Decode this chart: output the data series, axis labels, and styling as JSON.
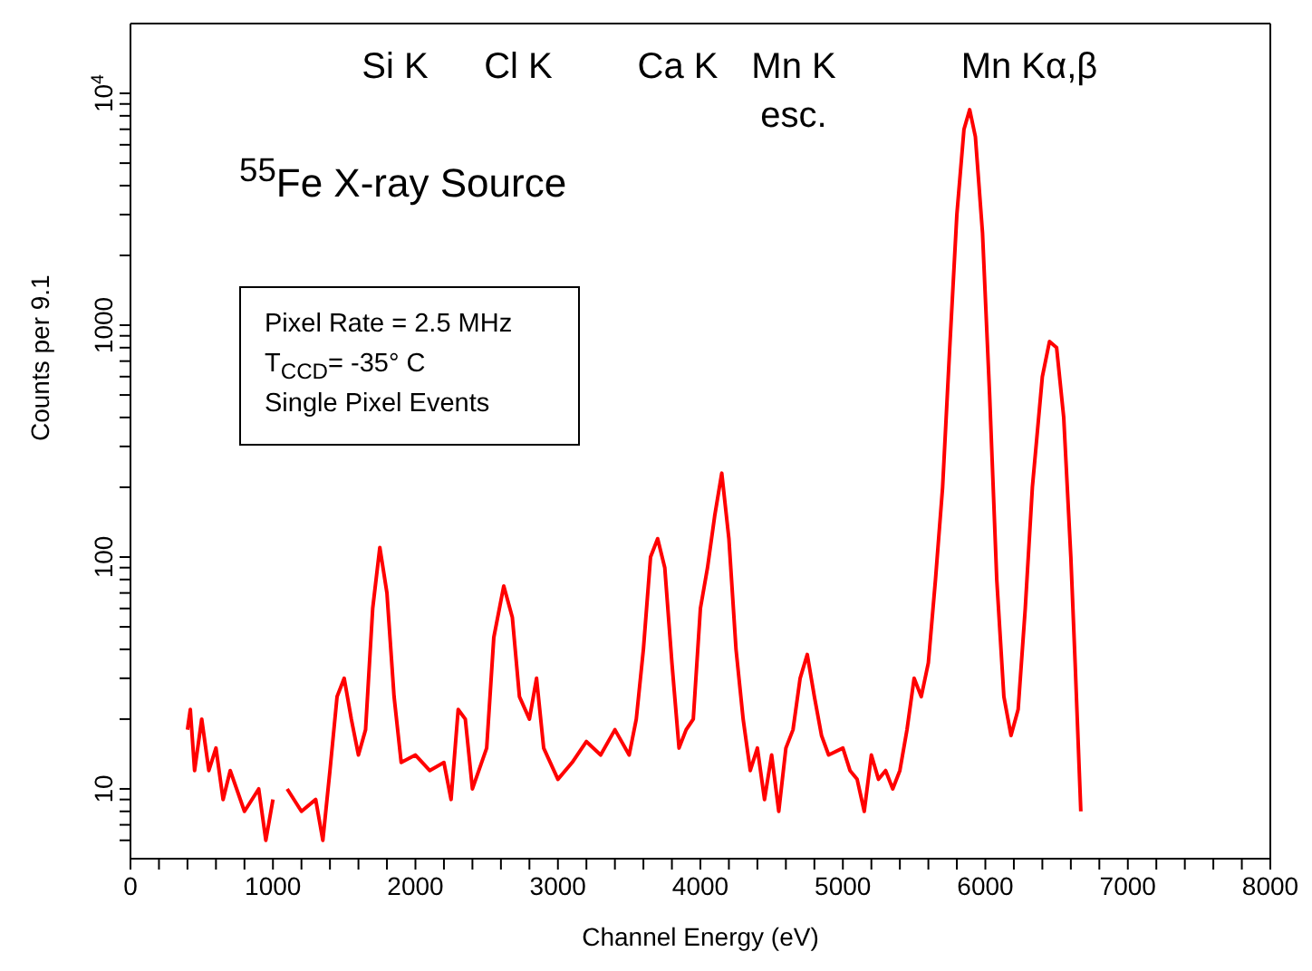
{
  "chart_data": {
    "type": "line",
    "xlabel": "Channel Energy (eV)",
    "ylabel": "Counts per 9.1",
    "log": "y",
    "marker": "none",
    "line_style": "solid",
    "annotations": [
      "Si K",
      "Cl K",
      "Ca K",
      "Mn K\nesc.",
      "Mn Kα,β",
      "$^{55}$Fe X-ray Source",
      "Pixel Rate = 2.5 MHz",
      "T$_{CCD}$= -35° C",
      "Single Pixel Events"
    ],
    "xlim": [
      0,
      8000
    ],
    "xticks": [
      0,
      {
        "value": 200,
        "label": null
      },
      {
        "value": 400,
        "label": null
      },
      {
        "value": 600,
        "label": null
      },
      {
        "value": 800,
        "label": null
      },
      1000,
      {
        "value": 1200,
        "label": null
      },
      {
        "value": 1400,
        "label": null
      },
      {
        "value": 1600,
        "label": null
      },
      {
        "value": 1800,
        "label": null
      },
      2000,
      {
        "value": 2200,
        "label": null
      },
      {
        "value": 2400,
        "label": null
      },
      {
        "value": 2600,
        "label": null
      },
      {
        "value": 2800,
        "label": null
      },
      3000,
      {
        "value": 3200,
        "label": null
      },
      {
        "value": 3400,
        "label": null
      },
      {
        "value": 3600,
        "label": null
      },
      {
        "value": 3800,
        "label": null
      },
      4000,
      {
        "value": 4200,
        "label": null
      },
      {
        "value": 4400,
        "label": null
      },
      {
        "value": 4600,
        "label": null
      },
      {
        "value": 4800,
        "label": null
      },
      5000,
      {
        "value": 5200,
        "label": null
      },
      {
        "value": 5400,
        "label": null
      },
      {
        "value": 5600,
        "label": null
      },
      {
        "value": 5800,
        "label": null
      },
      6000,
      {
        "value": 6200,
        "label": null
      },
      {
        "value": 6400,
        "label": null
      },
      {
        "value": 6600,
        "label": null
      },
      {
        "value": 6800,
        "label": null
      },
      7000,
      {
        "value": 7200,
        "label": null
      },
      {
        "value": 7400,
        "label": null
      },
      {
        "value": 7600,
        "label": null
      },
      {
        "value": 7800,
        "label": null
      },
      8000
    ],
    "ylim": [
      5,
      20000
    ],
    "yticks": [
      {
        "value": 6,
        "label": null
      },
      {
        "value": 7,
        "label": null
      },
      {
        "value": 8,
        "label": null
      },
      {
        "value": 9,
        "label": null
      },
      10,
      {
        "value": 20,
        "label": null
      },
      {
        "value": 30,
        "label": null
      },
      {
        "value": 40,
        "label": null
      },
      {
        "value": 50,
        "label": null
      },
      {
        "value": 60,
        "label": null
      },
      {
        "value": 70,
        "label": null
      },
      {
        "value": 80,
        "label": null
      },
      {
        "value": 90,
        "label": null
      },
      100,
      {
        "value": 200,
        "label": null
      },
      {
        "value": 300,
        "label": null
      },
      {
        "value": 400,
        "label": null
      },
      {
        "value": 500,
        "label": null
      },
      {
        "value": 600,
        "label": null
      },
      {
        "value": 700,
        "label": null
      },
      {
        "value": 800,
        "label": null
      },
      {
        "value": 900,
        "label": null
      },
      1000,
      {
        "value": 2000,
        "label": null
      },
      {
        "value": 3000,
        "label": null
      },
      {
        "value": 4000,
        "label": null
      },
      {
        "value": 5000,
        "label": null
      },
      {
        "value": 6000,
        "label": null
      },
      {
        "value": 7000,
        "label": null
      },
      {
        "value": 8000,
        "label": null
      },
      {
        "value": 9000,
        "label": null
      },
      {
        "value": 10000,
        "label": "10$^{4}$"
      }
    ],
    "x": [
      400,
      420,
      450,
      500,
      550,
      600,
      650,
      700,
      800,
      900,
      950,
      1000,
      1050,
      1100,
      1200,
      1300,
      1350,
      1400,
      1450,
      1500,
      1550,
      1600,
      1650,
      1700,
      1750,
      1800,
      1850,
      1900,
      2000,
      2100,
      2200,
      2250,
      2300,
      2350,
      2400,
      2500,
      2550,
      2620,
      2680,
      2730,
      2800,
      2850,
      2900,
      3000,
      3100,
      3200,
      3300,
      3400,
      3500,
      3550,
      3600,
      3650,
      3700,
      3750,
      3800,
      3850,
      3900,
      3950,
      4000,
      4050,
      4100,
      4150,
      4200,
      4250,
      4300,
      4350,
      4400,
      4450,
      4500,
      4550,
      4600,
      4650,
      4700,
      4750,
      4800,
      4850,
      4900,
      5000,
      5050,
      5100,
      5150,
      5200,
      5250,
      5300,
      5350,
      5400,
      5450,
      5500,
      5550,
      5600,
      5650,
      5700,
      5750,
      5800,
      5850,
      5890,
      5930,
      5980,
      6030,
      6080,
      6130,
      6180,
      6230,
      6280,
      6330,
      6400,
      6450,
      6500,
      6550,
      6600,
      6630,
      6670
    ],
    "series": [
      {
        "color": "#ff0000",
        "values": [
          18,
          22,
          12,
          20,
          12,
          15,
          9,
          12,
          8,
          10,
          6,
          9,
          null,
          10,
          8,
          9,
          6,
          12,
          25,
          30,
          20,
          14,
          18,
          60,
          110,
          70,
          25,
          13,
          14,
          12,
          13,
          9,
          22,
          20,
          10,
          15,
          45,
          75,
          55,
          25,
          20,
          30,
          15,
          11,
          13,
          16,
          14,
          18,
          14,
          20,
          40,
          100,
          120,
          90,
          35,
          15,
          18,
          20,
          60,
          90,
          150,
          230,
          120,
          40,
          20,
          12,
          15,
          9,
          14,
          8,
          15,
          18,
          30,
          38,
          25,
          17,
          14,
          15,
          12,
          11,
          8,
          14,
          11,
          12,
          10,
          12,
          18,
          30,
          25,
          35,
          80,
          200,
          800,
          3000,
          7000,
          8500,
          6500,
          2500,
          500,
          80,
          25,
          17,
          22,
          60,
          200,
          600,
          850,
          800,
          400,
          100,
          35,
          8
        ]
      }
    ]
  }
}
